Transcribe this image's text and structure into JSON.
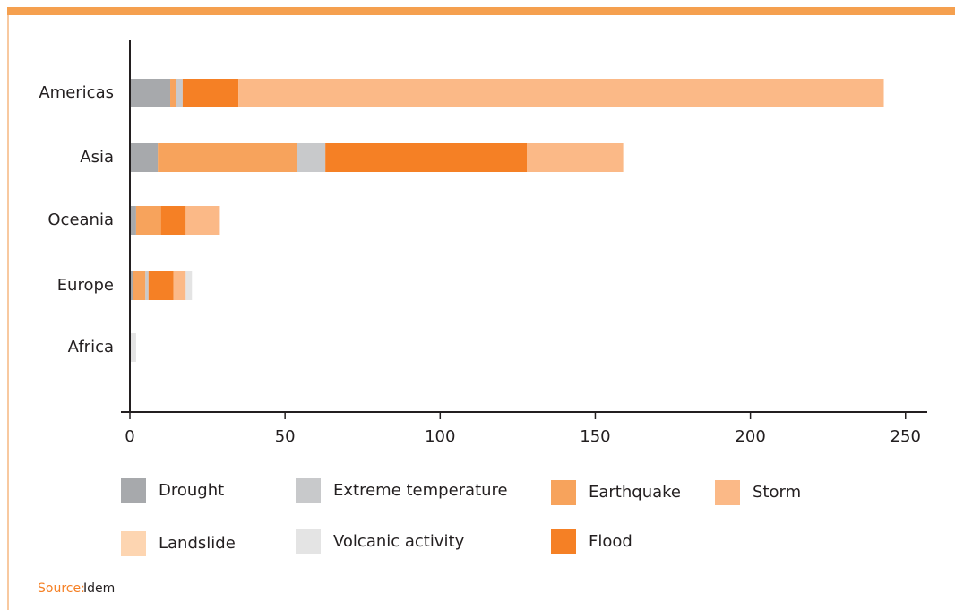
{
  "chart_data": {
    "type": "stacked-bar-horizontal",
    "categories": [
      "Americas",
      "Asia",
      "Oceania",
      "Europe",
      "Africa"
    ],
    "series": [
      {
        "name": "Drought",
        "color": "#a7a9ac",
        "values": [
          13,
          9,
          2,
          1,
          0
        ]
      },
      {
        "name": "Earthquake",
        "color": "#f7a35c",
        "values": [
          2,
          45,
          8,
          4,
          0
        ]
      },
      {
        "name": "Extreme temperature",
        "color": "#c8c9cb",
        "values": [
          2,
          9,
          0,
          1,
          0
        ]
      },
      {
        "name": "Flood",
        "color": "#f58025",
        "values": [
          18,
          65,
          8,
          8,
          0
        ]
      },
      {
        "name": "Storm",
        "color": "#fbb987",
        "values": [
          208,
          31,
          11,
          4,
          0
        ]
      },
      {
        "name": "Landslide",
        "color": "#fdd5b1",
        "values": [
          0,
          0,
          0,
          0,
          0
        ]
      },
      {
        "name": "Volcanic activity",
        "color": "#e4e4e4",
        "values": [
          0,
          0,
          0,
          2,
          2
        ]
      }
    ],
    "xlim": [
      0,
      257
    ],
    "xticks": [
      0,
      50,
      100,
      150,
      200,
      250
    ],
    "source": {
      "label": "Source:",
      "text": "Idem"
    }
  }
}
